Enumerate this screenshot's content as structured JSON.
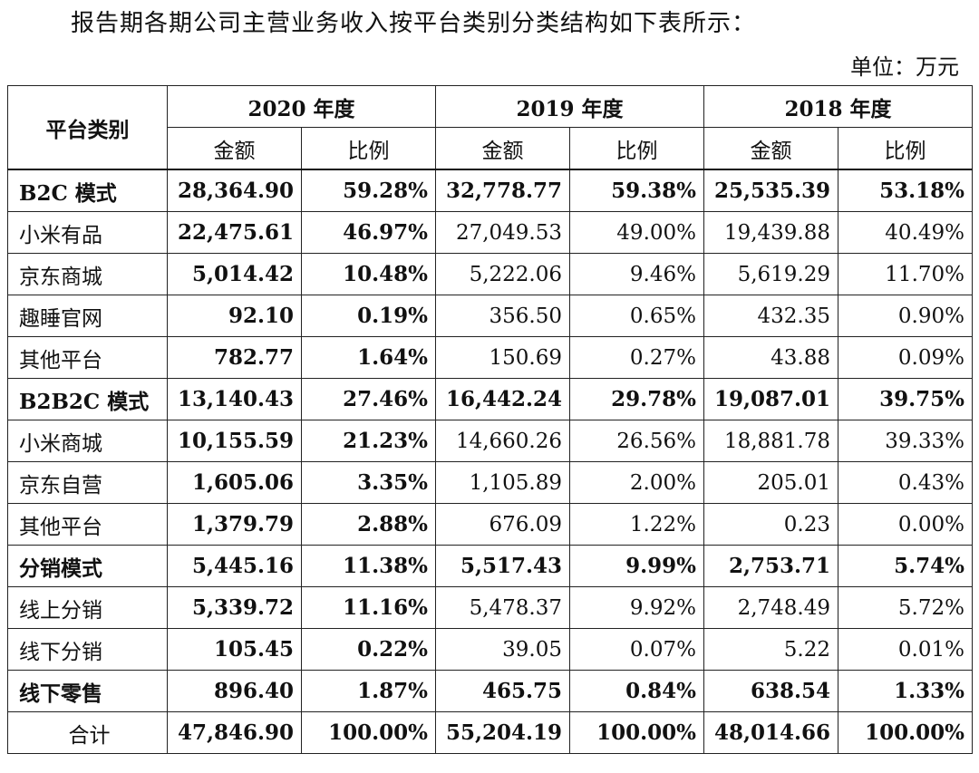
{
  "intro_text": "报告期各期公司主营业务收入按平台类别分类结构如下表所示：",
  "unit_label": "单位：万元",
  "table": {
    "category_header": "平台类别",
    "years": [
      "2020 年度",
      "2019 年度",
      "2018 年度"
    ],
    "sub_headers": [
      "金额",
      "比例",
      "金额",
      "比例",
      "金额",
      "比例"
    ],
    "rows": [
      {
        "name": "B2C 模式",
        "values": [
          "28,364.90",
          "59.28%",
          "32,778.77",
          "59.38%",
          "25,535.39",
          "53.18%"
        ]
      },
      {
        "name": "小米有品",
        "values": [
          "22,475.61",
          "46.97%",
          "27,049.53",
          "49.00%",
          "19,439.88",
          "40.49%"
        ]
      },
      {
        "name": "京东商城",
        "values": [
          "5,014.42",
          "10.48%",
          "5,222.06",
          "9.46%",
          "5,619.29",
          "11.70%"
        ]
      },
      {
        "name": "趣睡官网",
        "values": [
          "92.10",
          "0.19%",
          "356.50",
          "0.65%",
          "432.35",
          "0.90%"
        ]
      },
      {
        "name": "其他平台",
        "values": [
          "782.77",
          "1.64%",
          "150.69",
          "0.27%",
          "43.88",
          "0.09%"
        ]
      },
      {
        "name": "B2B2C 模式",
        "values": [
          "13,140.43",
          "27.46%",
          "16,442.24",
          "29.78%",
          "19,087.01",
          "39.75%"
        ]
      },
      {
        "name": "小米商城",
        "values": [
          "10,155.59",
          "21.23%",
          "14,660.26",
          "26.56%",
          "18,881.78",
          "39.33%"
        ]
      },
      {
        "name": "京东自营",
        "values": [
          "1,605.06",
          "3.35%",
          "1,105.89",
          "2.00%",
          "205.01",
          "0.43%"
        ]
      },
      {
        "name": "其他平台",
        "values": [
          "1,379.79",
          "2.88%",
          "676.09",
          "1.22%",
          "0.23",
          "0.00%"
        ]
      },
      {
        "name": "分销模式",
        "values": [
          "5,445.16",
          "11.38%",
          "5,517.43",
          "9.99%",
          "2,753.71",
          "5.74%"
        ]
      },
      {
        "name": "线上分销",
        "values": [
          "5,339.72",
          "11.16%",
          "5,478.37",
          "9.92%",
          "2,748.49",
          "5.72%"
        ]
      },
      {
        "name": "线下分销",
        "values": [
          "105.45",
          "0.22%",
          "39.05",
          "0.07%",
          "5.22",
          "0.01%"
        ]
      },
      {
        "name": "线下零售",
        "values": [
          "896.40",
          "1.87%",
          "465.75",
          "0.84%",
          "638.54",
          "1.33%"
        ]
      },
      {
        "name": "合计",
        "values": [
          "47,846.90",
          "100.00%",
          "55,204.19",
          "100.00%",
          "48,014.66",
          "100.00%"
        ]
      }
    ]
  }
}
